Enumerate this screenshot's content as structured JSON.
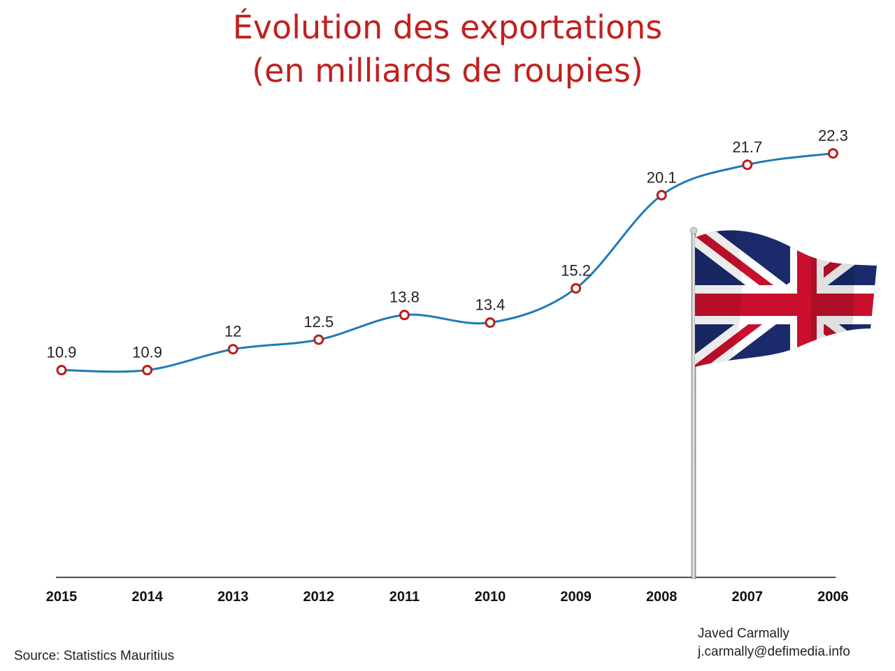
{
  "chart_data": {
    "type": "line",
    "title_line1": "Évolution des exportations",
    "title_line2": "(en milliards de roupies)",
    "categories": [
      "2015",
      "2014",
      "2013",
      "2012",
      "2011",
      "2010",
      "2009",
      "2008",
      "2007",
      "2006"
    ],
    "values": [
      10.9,
      10.9,
      12,
      12.5,
      13.8,
      13.4,
      15.2,
      20.1,
      21.7,
      22.3
    ],
    "value_labels": [
      "10.9",
      "10.9",
      "12",
      "12.5",
      "13.8",
      "13.4",
      "15.2",
      "20.1",
      "21.7",
      "22.3"
    ],
    "ylim": [
      0,
      25
    ],
    "grid": false,
    "line_color": "#1f7ab8",
    "marker_color": "#b81e1e"
  },
  "footer": {
    "source": "Source: Statistics Mauritius",
    "author": "Javed Carmally",
    "email": "j.carmally@defimedia.info"
  },
  "decoration": {
    "icon": "union-jack-flag-icon"
  }
}
